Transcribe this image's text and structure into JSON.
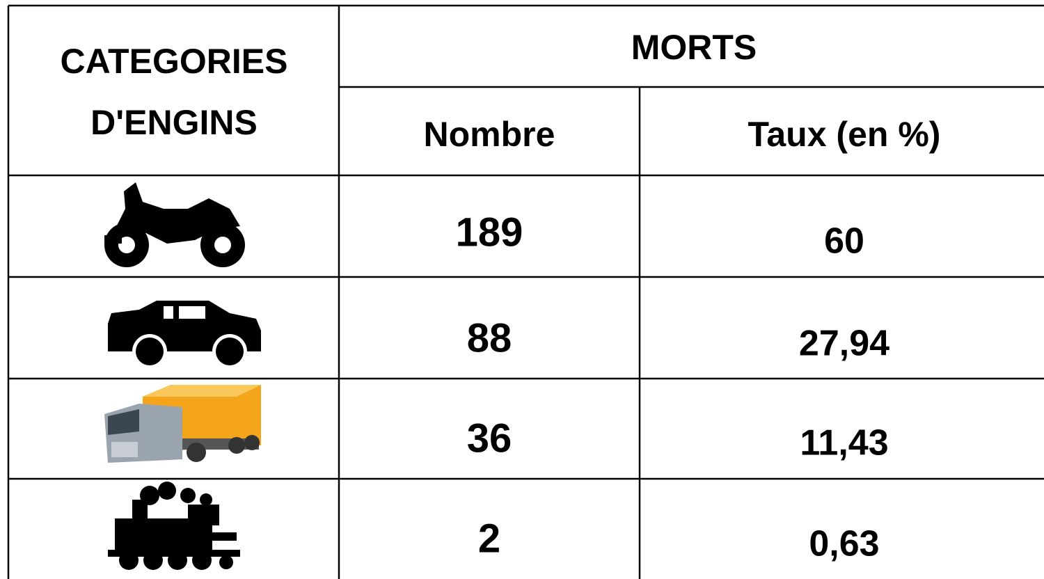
{
  "header": {
    "category_lines": [
      "CATEGORIES",
      "D'ENGINS"
    ],
    "group": "MORTS",
    "columns": [
      "Nombre",
      "Taux (en %)"
    ]
  },
  "table": {
    "rows": [
      [
        "189",
        "60"
      ],
      [
        "88",
        "27,94"
      ],
      [
        "36",
        "11,43"
      ],
      [
        "2",
        "0,63"
      ]
    ]
  }
}
